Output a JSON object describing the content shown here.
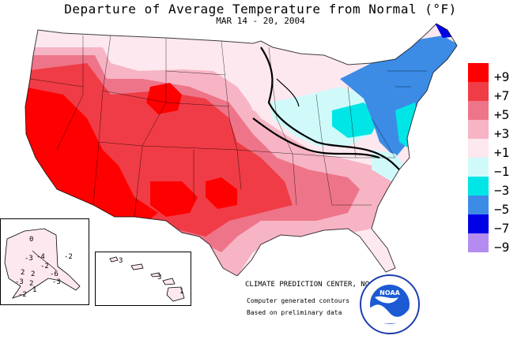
{
  "title": "Departure of Average Temperature from Normal (°F)",
  "subtitle": "MAR 14 - 20, 2004",
  "legend": [
    {
      "label": "+9",
      "color": "#ff0000"
    },
    {
      "label": "+7",
      "color": "#f03c46"
    },
    {
      "label": "+5",
      "color": "#ee7589"
    },
    {
      "label": "+3",
      "color": "#f7b4c5"
    },
    {
      "label": "+1",
      "color": "#fde8ef"
    },
    {
      "label": "−1",
      "color": "#d0fafa"
    },
    {
      "label": "−3",
      "color": "#00e6e6"
    },
    {
      "label": "−5",
      "color": "#3c8ce6"
    },
    {
      "label": "−7",
      "color": "#0000e6"
    },
    {
      "label": "−9",
      "color": "#b48cf0"
    }
  ],
  "credits": {
    "line1": "CLIMATE PREDICTION CENTER, NOAA",
    "line2": "Computer generated contours",
    "line3": "Based on preliminary data"
  },
  "logo": {
    "text": "NOAA"
  },
  "alaska_labels": [
    "-3",
    "-4",
    "-2",
    "2",
    "2",
    "-6",
    "-3",
    "-3",
    "2",
    "-2",
    "1",
    "-2",
    "0"
  ],
  "hawaii_labels": [
    "3",
    "3",
    "1"
  ]
}
